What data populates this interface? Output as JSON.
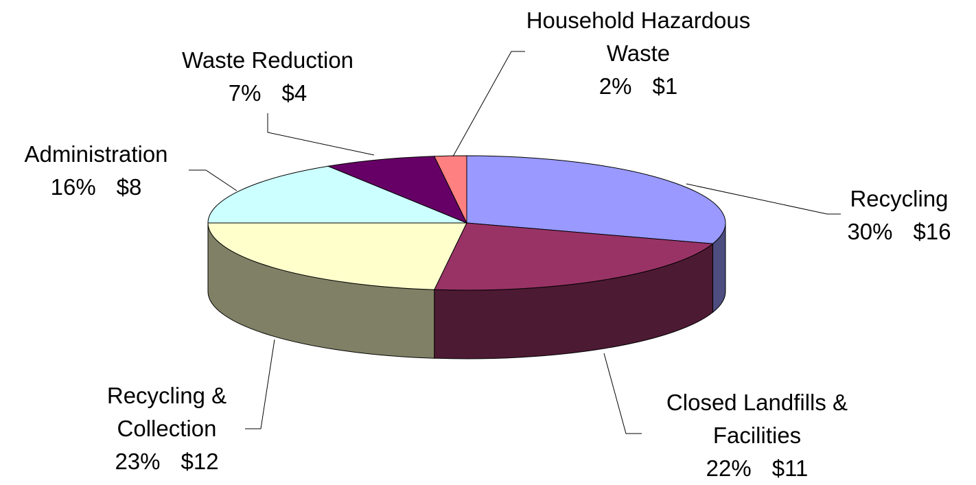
{
  "chart_data": {
    "type": "pie3d",
    "categories": [
      "Recycling",
      "Closed Landfills & Facilities",
      "Recycling & Collection",
      "Administration",
      "Waste Reduction",
      "Household Hazardous Waste"
    ],
    "values": [
      30,
      22,
      23,
      16,
      7,
      2
    ],
    "value_labels": [
      "30%",
      "22%",
      "23%",
      "16%",
      "7%",
      "2%"
    ],
    "amounts": [
      16,
      11,
      12,
      8,
      4,
      1
    ],
    "amount_labels": [
      "$16",
      "$11",
      "$12",
      "$8",
      "$4",
      "$1"
    ],
    "colors": [
      "#9999ff",
      "#993366",
      "#ffffcc",
      "#ccffff",
      "#660066",
      "#ff8080"
    ]
  }
}
